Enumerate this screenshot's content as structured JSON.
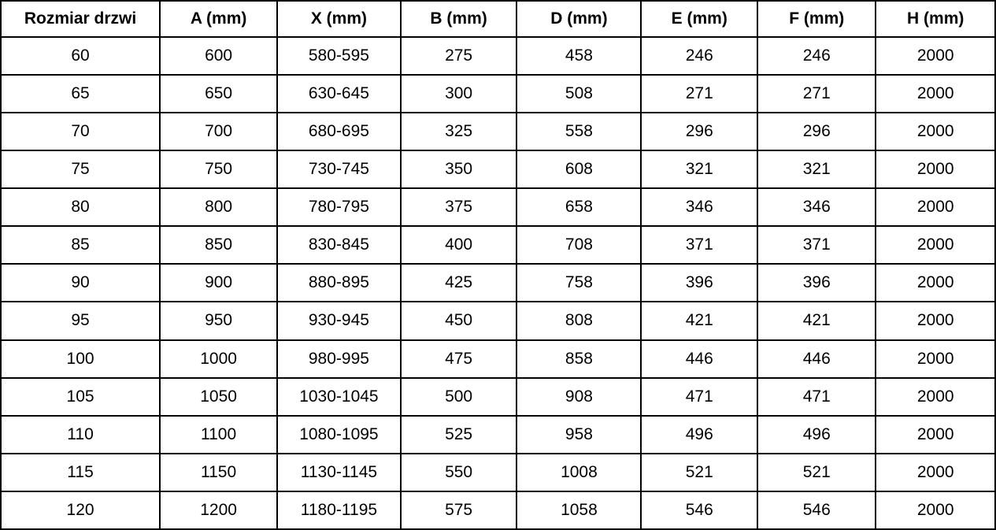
{
  "chart_data": {
    "type": "table",
    "title": "",
    "columns": [
      "Rozmiar drzwi",
      "A (mm)",
      "X (mm)",
      "B (mm)",
      "D (mm)",
      "E (mm)",
      "F (mm)",
      "H (mm)"
    ],
    "rows": [
      [
        "60",
        "600",
        "580-595",
        "275",
        "458",
        "246",
        "246",
        "2000"
      ],
      [
        "65",
        "650",
        "630-645",
        "300",
        "508",
        "271",
        "271",
        "2000"
      ],
      [
        "70",
        "700",
        "680-695",
        "325",
        "558",
        "296",
        "296",
        "2000"
      ],
      [
        "75",
        "750",
        "730-745",
        "350",
        "608",
        "321",
        "321",
        "2000"
      ],
      [
        "80",
        "800",
        "780-795",
        "375",
        "658",
        "346",
        "346",
        "2000"
      ],
      [
        "85",
        "850",
        "830-845",
        "400",
        "708",
        "371",
        "371",
        "2000"
      ],
      [
        "90",
        "900",
        "880-895",
        "425",
        "758",
        "396",
        "396",
        "2000"
      ],
      [
        "95",
        "950",
        "930-945",
        "450",
        "808",
        "421",
        "421",
        "2000"
      ],
      [
        "100",
        "1000",
        "980-995",
        "475",
        "858",
        "446",
        "446",
        "2000"
      ],
      [
        "105",
        "1050",
        "1030-1045",
        "500",
        "908",
        "471",
        "471",
        "2000"
      ],
      [
        "110",
        "1100",
        "1080-1095",
        "525",
        "958",
        "496",
        "496",
        "2000"
      ],
      [
        "115",
        "1150",
        "1130-1145",
        "550",
        "1008",
        "521",
        "521",
        "2000"
      ],
      [
        "120",
        "1200",
        "1180-1195",
        "575",
        "1058",
        "546",
        "546",
        "2000"
      ]
    ],
    "column_widths_pct": [
      16.0,
      11.8,
      12.4,
      11.7,
      12.5,
      11.7,
      11.9,
      12.0
    ],
    "colors": {
      "border": "#000000",
      "background": "#ffffff",
      "text": "#000000"
    },
    "grid": true,
    "legend": false
  }
}
